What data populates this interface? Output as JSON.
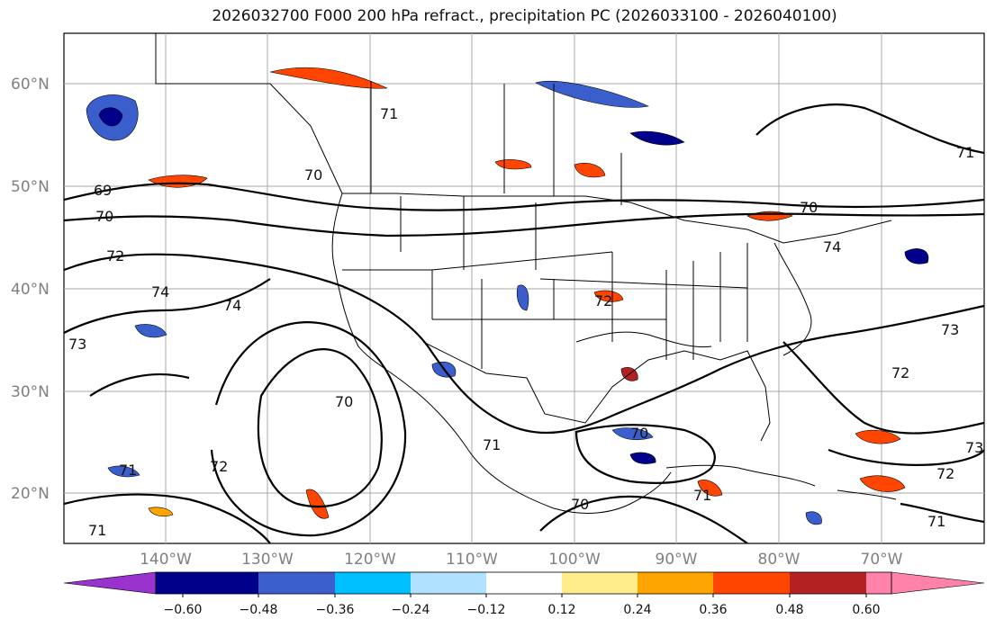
{
  "title": "2026032700 F000 200 hPa refract., precipitation PC (2026033100 - 2026040100)",
  "lat_labels": [
    "60°N",
    "50°N",
    "40°N",
    "30°N",
    "20°N"
  ],
  "lon_labels": [
    "140°W",
    "130°W",
    "120°W",
    "110°W",
    "100°W",
    "90°W",
    "80°W",
    "70°W"
  ],
  "contour_labels": [
    "69",
    "70",
    "70",
    "70",
    "70",
    "70",
    "71",
    "71",
    "71",
    "71",
    "71",
    "71",
    "72",
    "72",
    "72",
    "72",
    "72",
    "73",
    "73",
    "73",
    "74",
    "74",
    "74",
    "71",
    "70"
  ],
  "colorbar": {
    "colors": [
      "#9a32cd",
      "#00008b",
      "#3a5fcd",
      "#00bfff",
      "#b0e2ff",
      "#ffffff",
      "#ffec8b",
      "#ffa500",
      "#ff4500",
      "#b22222",
      "#ff82ab"
    ],
    "ticks": [
      "−0.60",
      "−0.48",
      "−0.36",
      "−0.24",
      "−0.12",
      "0.12",
      "0.24",
      "0.36",
      "0.48",
      "0.60"
    ]
  },
  "map_extent": {
    "lon_min": -150,
    "lon_max": -59,
    "lat_min": 15,
    "lat_max": 65
  }
}
